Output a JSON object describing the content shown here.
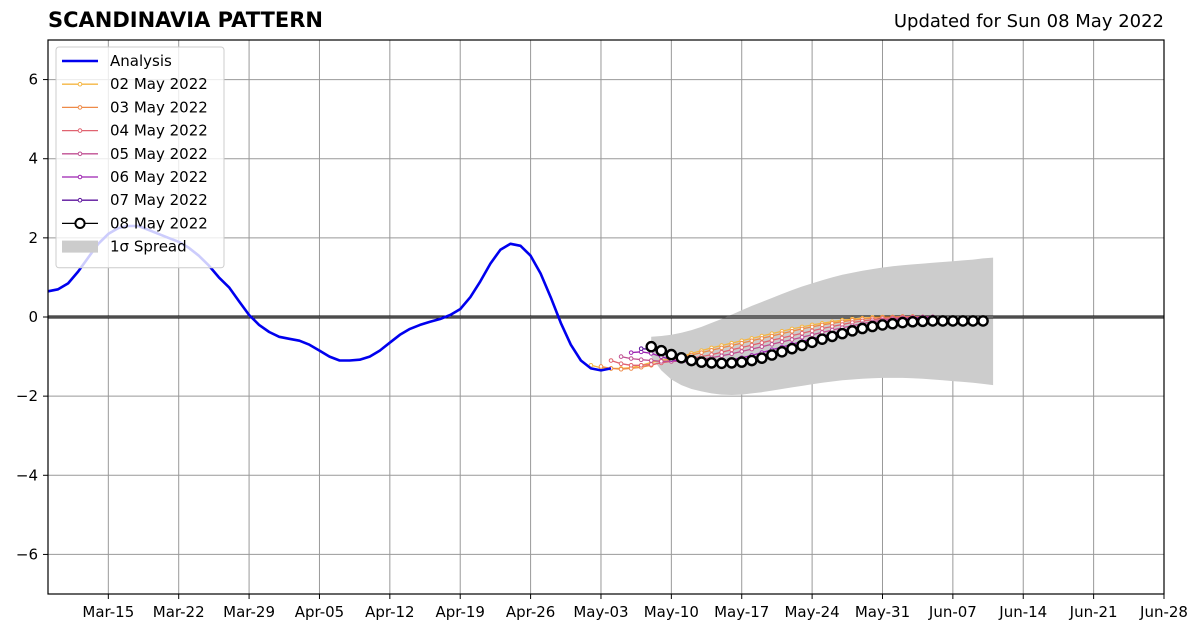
{
  "chart_data": {
    "type": "line",
    "title": "SCANDINAVIA PATTERN",
    "subtitle": "Updated for Sun 08 May 2022",
    "xlim": [
      "2022-03-09",
      "2022-06-28"
    ],
    "ylim": [
      -7,
      7
    ],
    "grid": true,
    "legend_position": "top-left",
    "x_ticks": [
      "2022-03-15",
      "2022-03-22",
      "2022-03-29",
      "2022-04-05",
      "2022-04-12",
      "2022-04-19",
      "2022-04-26",
      "2022-05-03",
      "2022-05-10",
      "2022-05-17",
      "2022-05-24",
      "2022-05-31",
      "2022-06-07",
      "2022-06-14",
      "2022-06-21",
      "2022-06-28"
    ],
    "x_tick_labels": [
      "Mar-15",
      "Mar-22",
      "Mar-29",
      "Apr-05",
      "Apr-12",
      "Apr-19",
      "Apr-26",
      "May-03",
      "May-10",
      "May-17",
      "May-24",
      "May-31",
      "Jun-07",
      "Jun-14",
      "Jun-21",
      "Jun-28"
    ],
    "y_ticks": [
      6,
      4,
      2,
      0,
      -2,
      -4,
      -6
    ],
    "y_tick_labels": [
      "6",
      "4",
      "2",
      "0",
      "−2",
      "−4",
      "−6"
    ],
    "series": [
      {
        "name": "Analysis",
        "color": "#0000ee",
        "start": "2022-03-09",
        "values": [
          0.65,
          0.7,
          0.85,
          1.15,
          1.5,
          1.85,
          2.1,
          2.25,
          2.3,
          2.3,
          2.2,
          2.1,
          2.0,
          1.9,
          1.75,
          1.55,
          1.3,
          1.0,
          0.75,
          0.4,
          0.05,
          -0.2,
          -0.38,
          -0.5,
          -0.55,
          -0.6,
          -0.7,
          -0.85,
          -1.0,
          -1.1,
          -1.1,
          -1.08,
          -1.0,
          -0.85,
          -0.65,
          -0.45,
          -0.3,
          -0.2,
          -0.12,
          -0.05,
          0.05,
          0.2,
          0.5,
          0.9,
          1.35,
          1.7,
          1.85,
          1.8,
          1.55,
          1.1,
          0.5,
          -0.15,
          -0.7,
          -1.1,
          -1.3,
          -1.35,
          -1.3
        ]
      },
      {
        "name": "02 May 2022",
        "color": "#f5b642",
        "start": "2022-05-02",
        "values": [
          -1.22,
          -1.28,
          -1.3,
          -1.3,
          -1.28,
          -1.22,
          -1.15,
          -1.1,
          -1.05,
          -1.0,
          -0.92,
          -0.85,
          -0.78,
          -0.72,
          -0.66,
          -0.6,
          -0.54,
          -0.48,
          -0.42,
          -0.36,
          -0.3,
          -0.25,
          -0.2,
          -0.16,
          -0.12,
          -0.08,
          -0.05,
          -0.03,
          -0.01,
          0.0,
          0.0,
          0.01,
          0.01,
          0.0,
          0.0
        ]
      },
      {
        "name": "03 May 2022",
        "color": "#ee8a48",
        "start": "2022-05-03",
        "values": [
          -1.25,
          -1.3,
          -1.32,
          -1.3,
          -1.27,
          -1.22,
          -1.15,
          -1.08,
          -1.02,
          -0.96,
          -0.9,
          -0.84,
          -0.78,
          -0.72,
          -0.66,
          -0.6,
          -0.54,
          -0.48,
          -0.42,
          -0.36,
          -0.3,
          -0.25,
          -0.2,
          -0.16,
          -0.12,
          -0.08,
          -0.05,
          -0.03,
          -0.01,
          0.0,
          0.01,
          0.01,
          0.0,
          0.0
        ]
      },
      {
        "name": "04 May 2022",
        "color": "#e06370",
        "start": "2022-05-04",
        "values": [
          -1.1,
          -1.18,
          -1.22,
          -1.22,
          -1.2,
          -1.16,
          -1.12,
          -1.08,
          -1.04,
          -1.0,
          -0.95,
          -0.89,
          -0.83,
          -0.77,
          -0.71,
          -0.65,
          -0.59,
          -0.53,
          -0.47,
          -0.41,
          -0.35,
          -0.29,
          -0.24,
          -0.19,
          -0.14,
          -0.1,
          -0.07,
          -0.04,
          -0.02,
          0.0,
          0.0,
          0.0,
          0.0
        ]
      },
      {
        "name": "05 May 2022",
        "color": "#c04f92",
        "start": "2022-05-05",
        "values": [
          -1.0,
          -1.05,
          -1.08,
          -1.1,
          -1.12,
          -1.12,
          -1.12,
          -1.1,
          -1.07,
          -1.03,
          -0.98,
          -0.93,
          -0.87,
          -0.81,
          -0.75,
          -0.69,
          -0.63,
          -0.57,
          -0.51,
          -0.45,
          -0.39,
          -0.33,
          -0.27,
          -0.22,
          -0.17,
          -0.12,
          -0.08,
          -0.05,
          -0.03,
          -0.01,
          0.0,
          0.0
        ]
      },
      {
        "name": "06 May 2022",
        "color": "#9c22b0",
        "start": "2022-05-06",
        "values": [
          -0.9,
          -0.88,
          -0.92,
          -1.0,
          -1.08,
          -1.12,
          -1.15,
          -1.16,
          -1.15,
          -1.12,
          -1.08,
          -1.03,
          -0.97,
          -0.9,
          -0.83,
          -0.76,
          -0.69,
          -0.62,
          -0.55,
          -0.48,
          -0.41,
          -0.35,
          -0.29,
          -0.23,
          -0.18,
          -0.13,
          -0.09,
          -0.06,
          -0.03,
          -0.01,
          0.0
        ]
      },
      {
        "name": "07 May 2022",
        "color": "#5b139c",
        "start": "2022-05-07",
        "values": [
          -0.8,
          -0.82,
          -0.9,
          -1.0,
          -1.08,
          -1.13,
          -1.16,
          -1.17,
          -1.16,
          -1.13,
          -1.09,
          -1.04,
          -0.98,
          -0.91,
          -0.84,
          -0.77,
          -0.7,
          -0.63,
          -0.56,
          -0.49,
          -0.43,
          -0.37,
          -0.31,
          -0.25,
          -0.2,
          -0.15,
          -0.11,
          -0.08,
          -0.05,
          -0.03
        ]
      },
      {
        "name": "08 May 2022",
        "color": "#000000",
        "start": "2022-05-08",
        "values": [
          -0.75,
          -0.85,
          -0.95,
          -1.03,
          -1.1,
          -1.14,
          -1.16,
          -1.17,
          -1.16,
          -1.14,
          -1.1,
          -1.04,
          -0.96,
          -0.88,
          -0.8,
          -0.72,
          -0.64,
          -0.56,
          -0.49,
          -0.42,
          -0.35,
          -0.29,
          -0.24,
          -0.2,
          -0.17,
          -0.14,
          -0.12,
          -0.11,
          -0.1,
          -0.1,
          -0.1,
          -0.1,
          -0.1,
          -0.1
        ]
      }
    ],
    "spread": {
      "name": "1σ Spread",
      "color": "#cccccc",
      "start": "2022-05-08",
      "upper": [
        -0.5,
        -0.48,
        -0.45,
        -0.4,
        -0.33,
        -0.25,
        -0.15,
        -0.05,
        0.06,
        0.17,
        0.28,
        0.38,
        0.48,
        0.58,
        0.68,
        0.77,
        0.85,
        0.93,
        1.0,
        1.07,
        1.12,
        1.17,
        1.21,
        1.25,
        1.28,
        1.31,
        1.33,
        1.35,
        1.37,
        1.39,
        1.41,
        1.43,
        1.45,
        1.48,
        1.5
      ],
      "lower": [
        -1.0,
        -1.35,
        -1.58,
        -1.72,
        -1.82,
        -1.88,
        -1.93,
        -1.96,
        -1.97,
        -1.96,
        -1.93,
        -1.9,
        -1.86,
        -1.82,
        -1.78,
        -1.74,
        -1.7,
        -1.66,
        -1.63,
        -1.6,
        -1.58,
        -1.56,
        -1.55,
        -1.54,
        -1.54,
        -1.54,
        -1.55,
        -1.56,
        -1.58,
        -1.6,
        -1.62,
        -1.64,
        -1.66,
        -1.69,
        -1.72
      ]
    }
  }
}
